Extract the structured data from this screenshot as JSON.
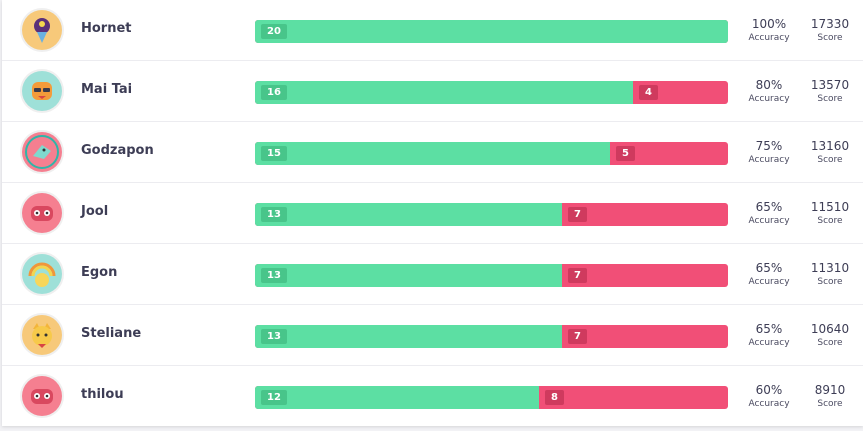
{
  "players": [
    {
      "name": "Hornet",
      "correct": 20,
      "incorrect": 0,
      "accuracy": "100%",
      "score": "17330",
      "avatar_icon": "purple-balloon-monster-icon",
      "avatar_color": "#f7c97a"
    },
    {
      "name": "Mai Tai",
      "correct": 16,
      "incorrect": 4,
      "accuracy": "80%",
      "score": "13570",
      "avatar_icon": "orange-cat-with-glasses-icon",
      "avatar_color": "#9ee0d8"
    },
    {
      "name": "Godzapon",
      "correct": 15,
      "incorrect": 5,
      "accuracy": "75%",
      "score": "13160",
      "avatar_icon": "teal-dragon-icon",
      "avatar_color": "#f57f90"
    },
    {
      "name": "Jool",
      "correct": 13,
      "incorrect": 7,
      "accuracy": "65%",
      "score": "11510",
      "avatar_icon": "red-gamepad-monster-icon",
      "avatar_color": "#f57f90"
    },
    {
      "name": "Egon",
      "correct": 13,
      "incorrect": 7,
      "accuracy": "65%",
      "score": "11310",
      "avatar_icon": "yellow-rainbow-blob-icon",
      "avatar_color": "#9ee0d8"
    },
    {
      "name": "Steliane",
      "correct": 13,
      "incorrect": 7,
      "accuracy": "65%",
      "score": "10640",
      "avatar_icon": "yellow-cat-icon",
      "avatar_color": "#f7c97a"
    },
    {
      "name": "thilou",
      "correct": 12,
      "incorrect": 8,
      "accuracy": "60%",
      "score": "8910",
      "avatar_icon": "red-gamepad-monster-icon",
      "avatar_color": "#f57f90"
    }
  ],
  "labels": {
    "accuracy": "Accuracy",
    "score": "Score"
  },
  "colors": {
    "correct": "#5cdfa3",
    "incorrect": "#f14f77"
  }
}
